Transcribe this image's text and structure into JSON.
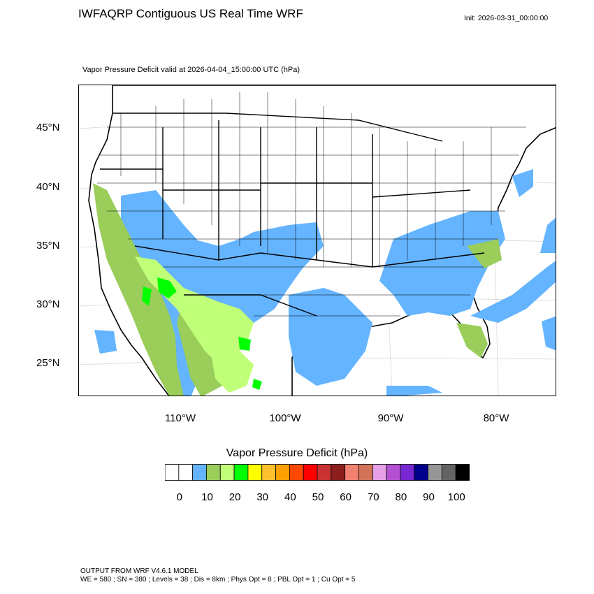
{
  "header": {
    "title": "IWFAQRP Contiguous US Real Time WRF",
    "init": "Init: 2026-03-31_00:00:00",
    "subtitle": "Vapor Pressure Deficit valid at 2026-04-04_15:00:00 UTC   (hPa)"
  },
  "map": {
    "lat_labels": [
      "45°N",
      "40°N",
      "35°N",
      "30°N",
      "25°N"
    ],
    "lon_labels": [
      "110°W",
      "100°W",
      "90°W",
      "80°W"
    ],
    "water_color": "#ffffff",
    "boundary_color": "#000000"
  },
  "colorbar": {
    "title": "Vapor Pressure Deficit  (hPa)",
    "colors": [
      "#ffffff",
      "#ffffff",
      "#64b4ff",
      "#9acd5a",
      "#c0ff78",
      "#00ff00",
      "#ffff00",
      "#ffc02e",
      "#ffa000",
      "#ff4800",
      "#ff0000",
      "#c83232",
      "#8c1e1e",
      "#f08070",
      "#d2735a",
      "#e6a0e6",
      "#b450d2",
      "#7828d2",
      "#00008c",
      "#969696",
      "#646464",
      "#000000"
    ],
    "labels": [
      "0",
      "10",
      "20",
      "30",
      "40",
      "50",
      "60",
      "70",
      "80",
      "90",
      "100"
    ]
  },
  "footer": {
    "line1": "OUTPUT FROM WRF V4.6.1 MODEL",
    "line2": "WE = 580 ; SN = 380 ; Levels = 38 ; Dis = 8km ; Phys Opt = 8 ; PBL Opt = 1 ; Cu Opt = 5"
  }
}
